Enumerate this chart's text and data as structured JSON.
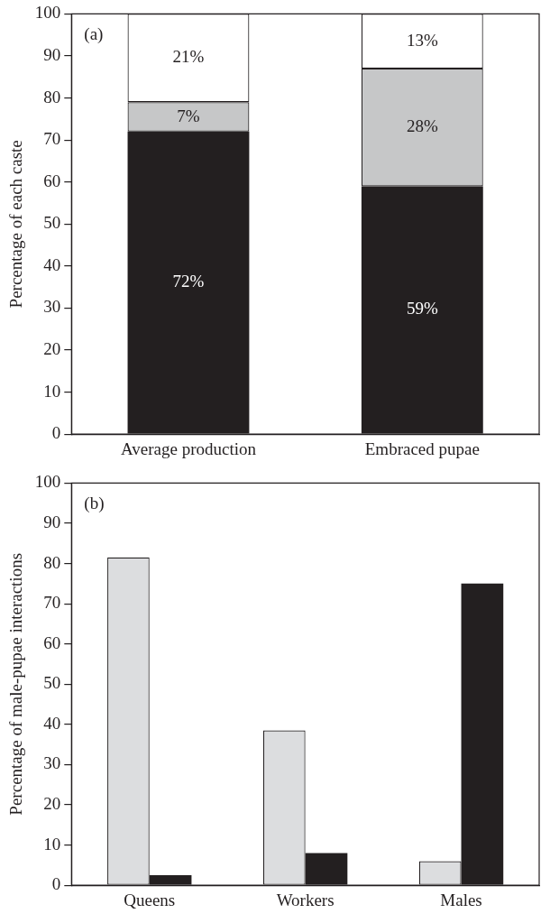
{
  "chart_data": [
    {
      "type": "bar",
      "stacked": true,
      "ylabel": "Percentage of each caste",
      "categories": [
        "Average production",
        "Embraced pupae"
      ],
      "ylim": [
        0,
        100
      ],
      "yticks": [
        0,
        10,
        20,
        30,
        40,
        50,
        60,
        70,
        80,
        90,
        100
      ],
      "grid": false,
      "legend": false,
      "annotations": [
        "(a)"
      ],
      "series": [
        {
          "color": "#231f20",
          "values": [
            72,
            59
          ],
          "value_labels": [
            "72%",
            "59%"
          ]
        },
        {
          "color": "#c6c7c8",
          "values": [
            7,
            28
          ],
          "value_labels": [
            "7%",
            "28%"
          ]
        },
        {
          "color": "#ffffff",
          "values": [
            21,
            13
          ],
          "value_labels": [
            "21%",
            "13%"
          ]
        }
      ]
    },
    {
      "type": "bar",
      "ylabel": "Percentage of male-pupae interactions",
      "categories": [
        "Queens",
        "Workers",
        "Males"
      ],
      "ylim": [
        0,
        100
      ],
      "yticks": [
        0,
        10,
        20,
        30,
        40,
        50,
        60,
        70,
        80,
        90,
        100
      ],
      "grid": false,
      "legend": false,
      "annotations": [
        "(b)"
      ],
      "series": [
        {
          "color": "#dcdddf",
          "values": [
            81.5,
            38.5,
            6
          ]
        },
        {
          "color": "#231f20",
          "values": [
            2.5,
            8,
            75
          ]
        }
      ]
    }
  ]
}
